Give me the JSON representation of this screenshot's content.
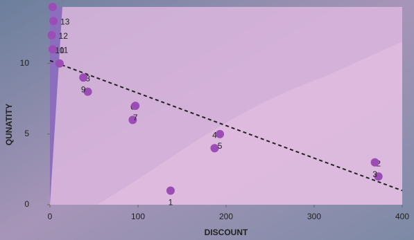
{
  "chart_data": {
    "type": "scatter",
    "x_label": "DISCOUNT",
    "y_label": "QUNATITY",
    "x": [
      137,
      373,
      369,
      187,
      193,
      94,
      97,
      43,
      38,
      11,
      3,
      2,
      4,
      3
    ],
    "y": [
      1,
      2,
      3,
      4,
      5,
      6,
      7,
      8,
      9,
      10,
      11,
      12,
      13,
      14
    ],
    "point_labels": [
      "1",
      "2",
      "3",
      "4",
      "5",
      "6",
      "7",
      "8",
      "9",
      "10",
      "11",
      "12",
      "13",
      null
    ],
    "color": "#9b4db5",
    "trendline": {
      "x": [
        0,
        400
      ],
      "y": [
        10.2,
        1
      ]
    },
    "xlim": [
      0,
      400
    ],
    "ylim": [
      0,
      14
    ],
    "xticks": [
      0,
      100,
      200,
      300,
      400
    ],
    "yticks": [
      0,
      5,
      10
    ]
  }
}
